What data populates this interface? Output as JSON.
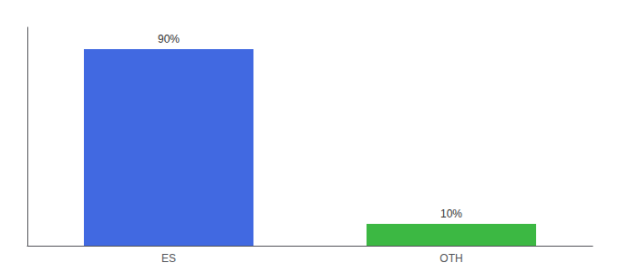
{
  "chart_data": {
    "type": "bar",
    "categories": [
      "ES",
      "OTH"
    ],
    "values": [
      90,
      10
    ],
    "value_labels": [
      "90%",
      "10%"
    ],
    "colors": [
      "#4169e1",
      "#3cb843"
    ],
    "ylim": [
      0,
      100
    ],
    "grid": false,
    "data_labels": true,
    "tick_labels": "x"
  }
}
